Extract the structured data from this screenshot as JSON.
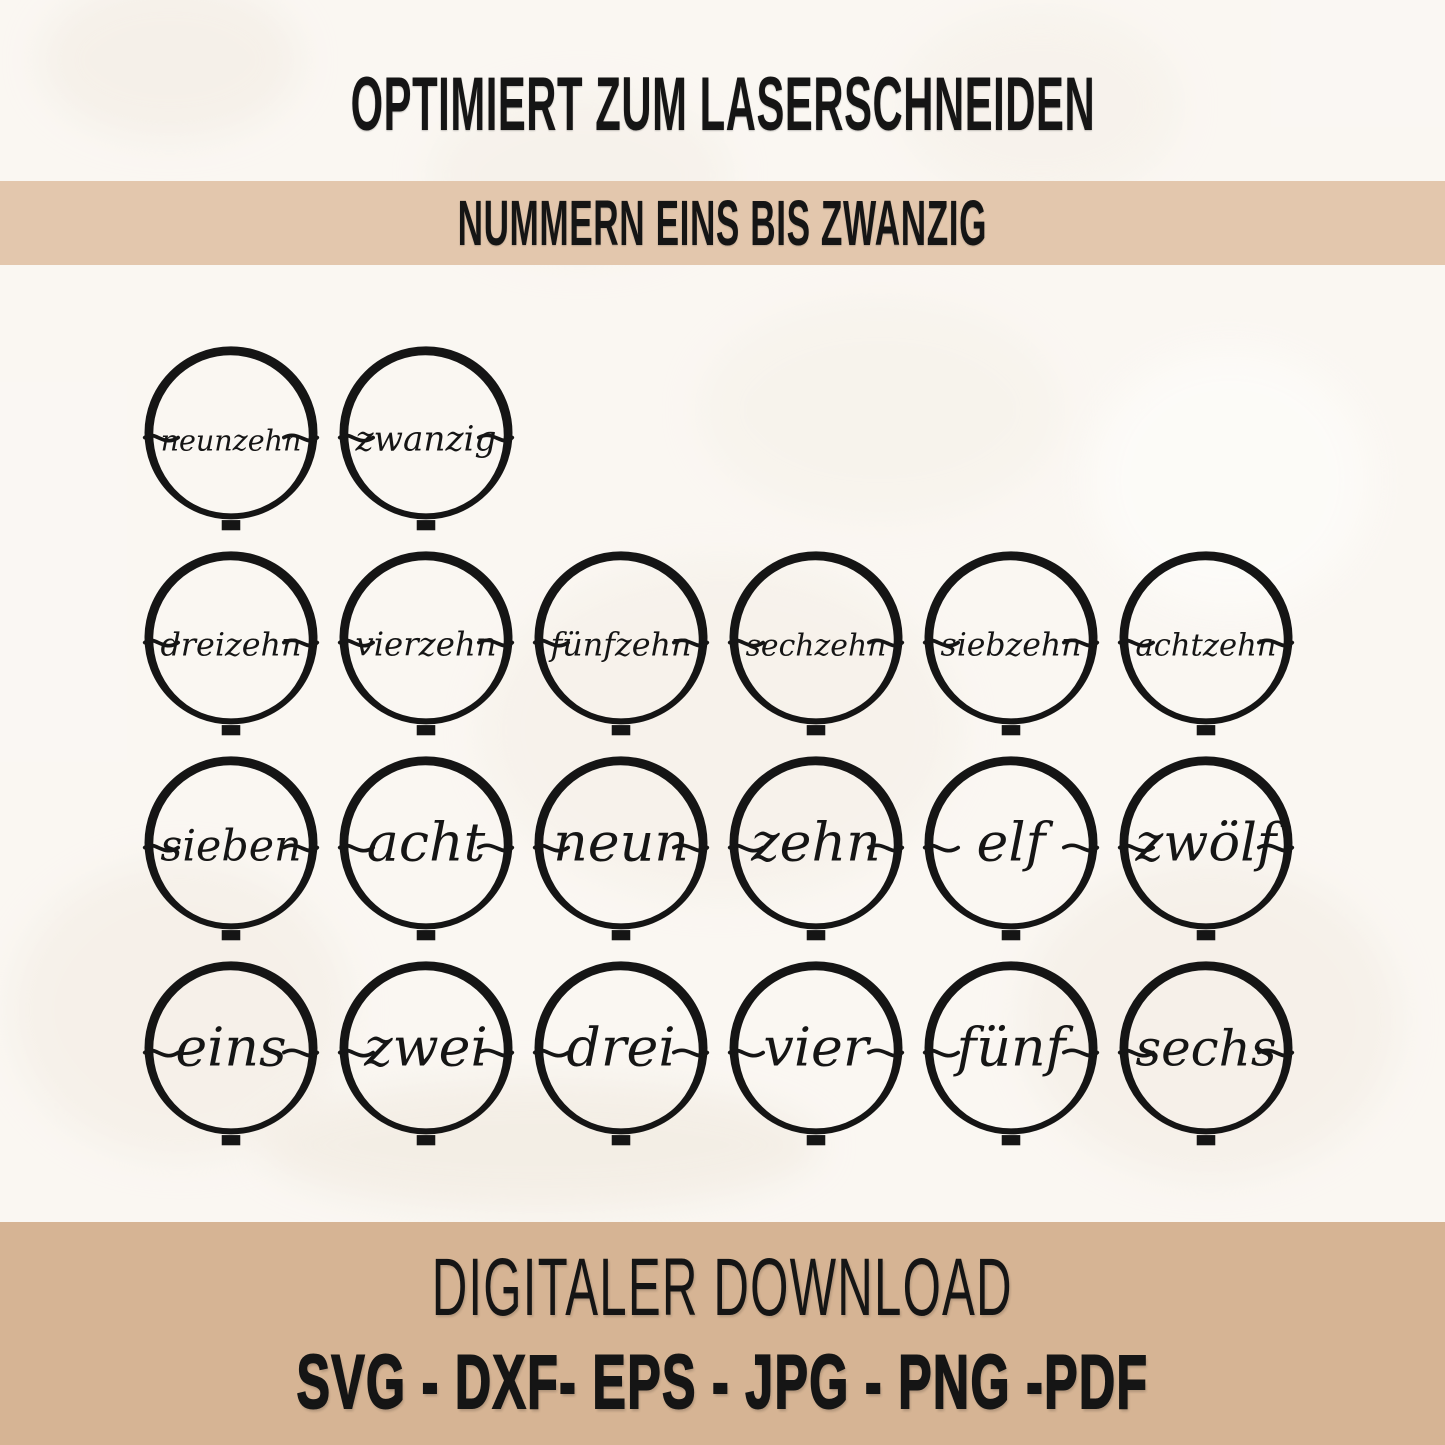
{
  "header": {
    "title": "OPTIMIERT ZUM LASERSCHNEIDEN"
  },
  "band": {
    "label": "NUMMERN EINS BIS ZWANZIG"
  },
  "ornaments": {
    "rows": [
      {
        "items": [
          "neunzehn",
          "zwanzig"
        ]
      },
      {
        "items": [
          "dreizehn",
          "vierzehn",
          "fünfzehn",
          "sechzehn",
          "siebzehn",
          "achtzehn"
        ]
      },
      {
        "items": [
          "sieben",
          "acht",
          "neun",
          "zehn",
          "elf",
          "zwölf"
        ]
      },
      {
        "items": [
          "eins",
          "zwei",
          "drei",
          "vier",
          "fünf",
          "sechs"
        ]
      }
    ]
  },
  "footer": {
    "title": "DIGITALER DOWNLOAD",
    "formats": "SVG - DXF- EPS - JPG - PNG -PDF"
  },
  "colors": {
    "background": "#f8f4ef",
    "band_top": "#e3c7ad",
    "band_bottom": "#d6b494",
    "ink": "#151515"
  }
}
